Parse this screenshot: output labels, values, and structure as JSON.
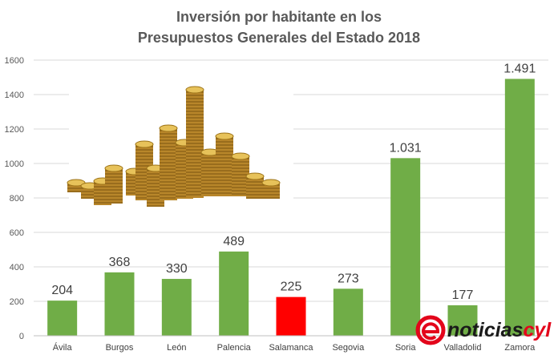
{
  "title_line1": "Inversión por habitante en los",
  "title_line2": "Presupuestos Generales del Estado 2018",
  "colors": {
    "bar_default": "#70ad47",
    "bar_highlight": "#ff0000",
    "grid": "#d9d9d9",
    "logo_red": "#e3061b",
    "logo_dark": "#1a1a1a"
  },
  "chart_data": {
    "type": "bar",
    "categories": [
      "Ávila",
      "Burgos",
      "León",
      "Palencia",
      "Salamanca",
      "Segovia",
      "Soria",
      "Valladolid",
      "Zamora"
    ],
    "values": [
      204,
      368,
      330,
      489,
      225,
      273,
      1031,
      177,
      1491
    ],
    "data_labels": [
      "204",
      "368",
      "330",
      "489",
      "225",
      "273",
      "1.031",
      "177",
      "1.491"
    ],
    "highlight_category": "Salamanca",
    "yticks": [
      0,
      200,
      400,
      600,
      800,
      1000,
      1200,
      1400,
      1600
    ],
    "ylim": [
      0,
      1600
    ],
    "grid": true,
    "xlabel": "",
    "ylabel": ""
  },
  "watermark": {
    "prefix": "noticias",
    "suffix": "cyl",
    "icon": "e-logo-icon"
  },
  "illustration": {
    "icon": "coin-stacks-photo"
  }
}
